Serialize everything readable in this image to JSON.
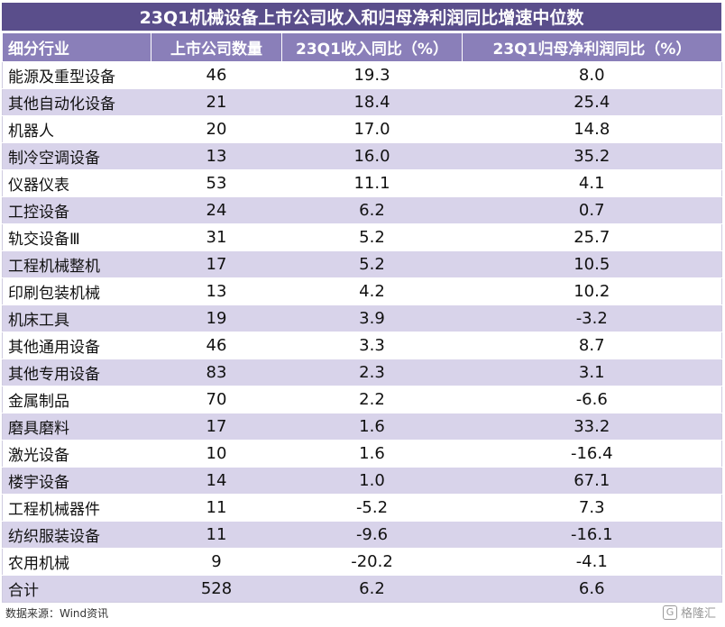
{
  "title": "23Q1机械设备上市公司收入和归母净利润同比增速中位数",
  "headers": [
    "细分行业",
    "上市公司数量",
    "23Q1收入同比（%）",
    "23Q1归母净利润同比（%）"
  ],
  "rows": [
    [
      "能源及重型设备",
      "46",
      "19.3",
      "8.0"
    ],
    [
      "其他自动化设备",
      "21",
      "18.4",
      "25.4"
    ],
    [
      "机器人",
      "20",
      "17.0",
      "14.8"
    ],
    [
      "制冷空调设备",
      "13",
      "16.0",
      "35.2"
    ],
    [
      "仪器仪表",
      "53",
      "11.1",
      "4.1"
    ],
    [
      "工控设备",
      "24",
      "6.2",
      "0.7"
    ],
    [
      "轨交设备Ⅲ",
      "31",
      "5.2",
      "25.7"
    ],
    [
      "工程机械整机",
      "17",
      "5.2",
      "10.5"
    ],
    [
      "印刷包装机械",
      "13",
      "4.2",
      "10.2"
    ],
    [
      "机床工具",
      "19",
      "3.9",
      "-3.2"
    ],
    [
      "其他通用设备",
      "46",
      "3.3",
      "8.7"
    ],
    [
      "其他专用设备",
      "83",
      "2.3",
      "3.1"
    ],
    [
      "金属制品",
      "70",
      "2.2",
      "-6.6"
    ],
    [
      "磨具磨料",
      "17",
      "1.6",
      "33.2"
    ],
    [
      "激光设备",
      "10",
      "1.6",
      "-16.4"
    ],
    [
      "楼宇设备",
      "14",
      "1.0",
      "67.1"
    ],
    [
      "工程机械器件",
      "11",
      "-5.2",
      "7.3"
    ],
    [
      "纺织服装设备",
      "11",
      "-9.6",
      "-16.1"
    ],
    [
      "农用机械",
      "9",
      "-20.2",
      "-4.1"
    ],
    [
      "合计",
      "528",
      "6.2",
      "6.6"
    ]
  ],
  "source": "数据来源：Wind资讯",
  "watermark": "格隆汇",
  "watermark_icon": "ge-logo-icon",
  "colors": {
    "title_bg": "#5a4e8b",
    "header_bg": "#8a7fb9",
    "stripe": "#d8d3ea"
  }
}
